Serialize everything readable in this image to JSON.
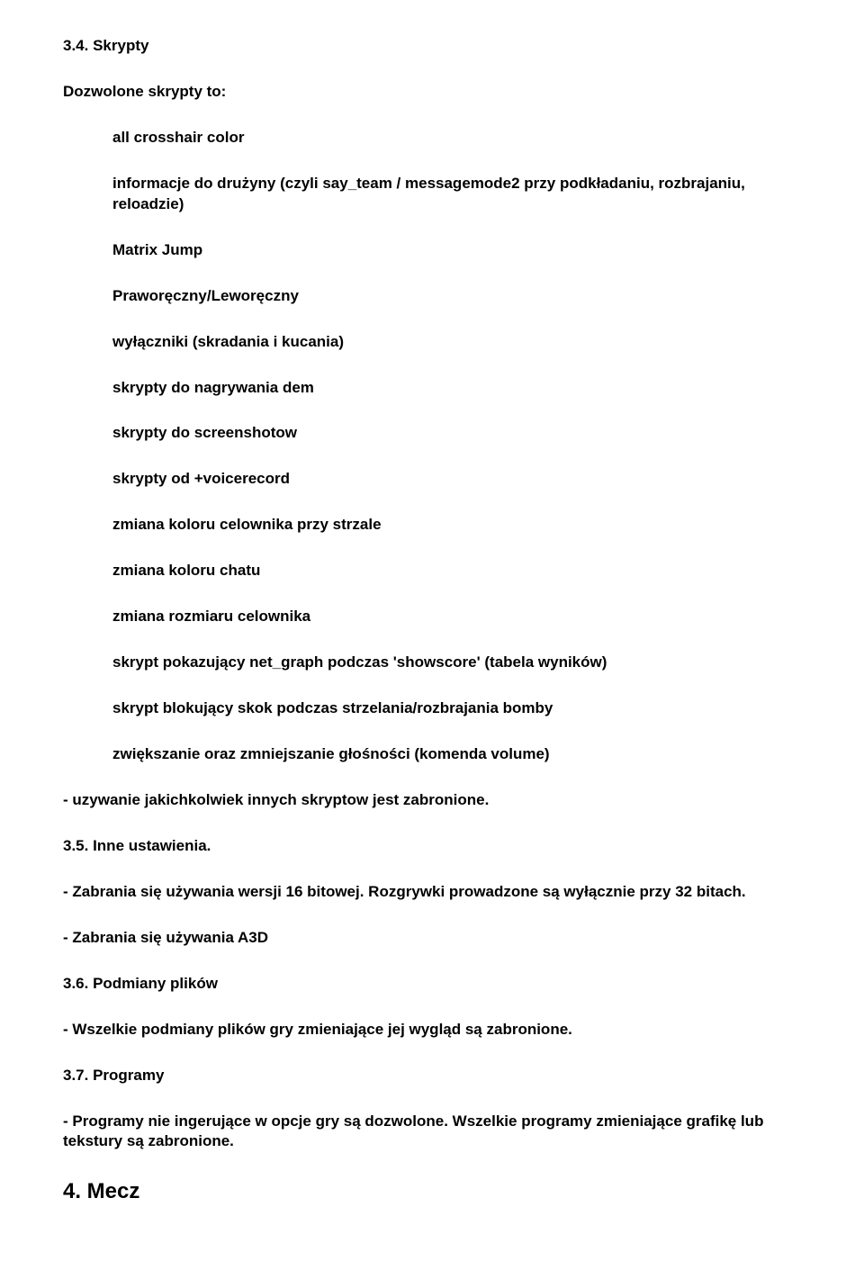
{
  "s34_title": "3.4. Skrypty",
  "s34_intro": "Dozwolone skrypty to:",
  "scripts": [
    "all crosshair color",
    "informacje do drużyny (czyli say_team / messagemode2 przy podkładaniu, rozbrajaniu, reloadzie)",
    "Matrix Jump",
    "Praworęczny/Leworęczny",
    "wyłączniki (skradania i kucania)",
    "skrypty do nagrywania dem",
    "skrypty do screenshotow",
    "skrypty od +voicerecord",
    "zmiana koloru celownika przy strzale",
    "zmiana koloru chatu",
    "zmiana rozmiaru celownika",
    "skrypt pokazujący net_graph podczas 'showscore' (tabela wyników)",
    "skrypt blokujący skok podczas strzelania/rozbrajania bomby",
    "zwiększanie oraz zmniejszanie głośności (komenda volume)"
  ],
  "s34_outro": "- uzywanie jakichkolwiek innych skryptow jest zabronione.",
  "s35_title": "3.5. Inne ustawienia.",
  "s35_p1": "- Zabrania się używania wersji 16 bitowej. Rozgrywki prowadzone są wyłącznie przy 32 bitach.",
  "s35_p2": "- Zabrania się używania A3D",
  "s36_title": "3.6. Podmiany plików",
  "s36_p1": "- Wszelkie podmiany plików gry zmieniające jej wygląd są zabronione.",
  "s37_title": "3.7. Programy",
  "s37_p1": "- Programy nie ingerujące w opcje gry są dozwolone. Wszelkie programy zmieniające grafikę lub tekstury są zabronione.",
  "s4_title": "4. Mecz"
}
